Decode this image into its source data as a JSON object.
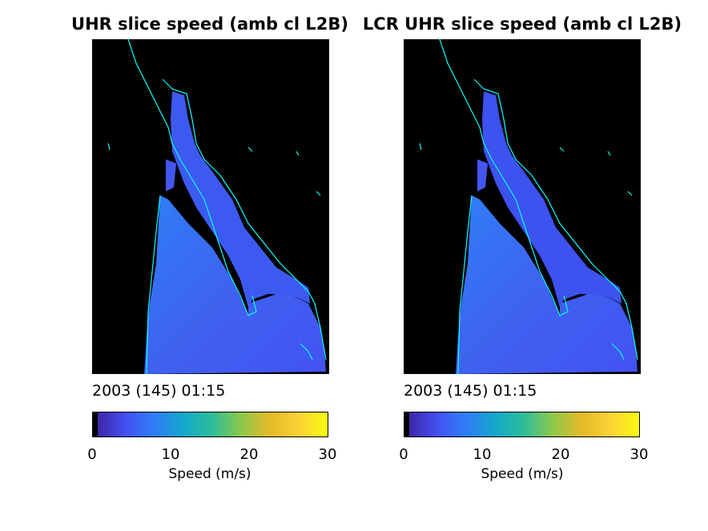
{
  "panels": [
    {
      "title": "UHR slice speed (amb cl L2B)",
      "timestamp": "2003 (145) 01:15",
      "colorbar": {
        "label": "Speed (m/s)",
        "ticks": [
          "0",
          "10",
          "20",
          "30"
        ]
      }
    },
    {
      "title": "LCR UHR slice speed (amb cl L2B)",
      "timestamp": "2003 (145) 01:15",
      "colorbar": {
        "label": "Speed (m/s)",
        "ticks": [
          "0",
          "10",
          "20",
          "30"
        ]
      }
    }
  ],
  "colormap": {
    "name": "parula",
    "range": [
      0,
      30
    ],
    "stops": [
      "#000000",
      "#3e26a8",
      "#4352f3",
      "#2f7ef6",
      "#15a8cb",
      "#2ebd99",
      "#8ec84a",
      "#e5b929",
      "#fbd236",
      "#f9fb0e"
    ]
  },
  "colors": {
    "background": "#000000",
    "coastline": "#00ffff",
    "ocean": "#3a6cf0"
  }
}
